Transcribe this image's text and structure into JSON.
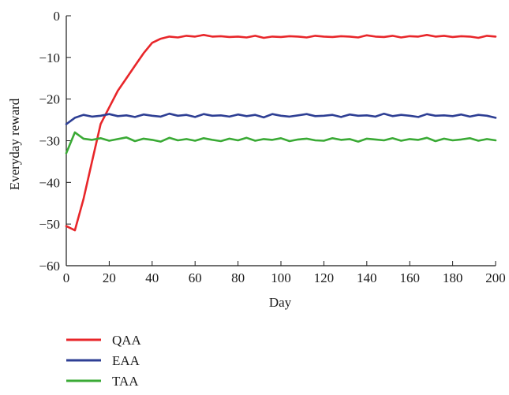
{
  "chart_data": {
    "type": "line",
    "title": "",
    "xlabel": "Day",
    "ylabel": "Everyday reward",
    "xlim": [
      0,
      200
    ],
    "ylim": [
      -60,
      0
    ],
    "xticks": [
      0,
      20,
      40,
      60,
      80,
      100,
      120,
      140,
      160,
      180,
      200
    ],
    "yticks": [
      0,
      -10,
      -20,
      -30,
      -40,
      -50,
      -60
    ],
    "xtick_labels": [
      "0",
      "20",
      "40",
      "60",
      "80",
      "100",
      "120",
      "140",
      "160",
      "180",
      "200"
    ],
    "ytick_labels": [
      "0",
      "−10",
      "−20",
      "−30",
      "−40",
      "−50",
      "−60"
    ],
    "grid": false,
    "legend_placement": "bottom-left below plot",
    "x": [
      0,
      4,
      8,
      12,
      16,
      20,
      24,
      28,
      32,
      36,
      40,
      44,
      48,
      52,
      56,
      60,
      64,
      68,
      72,
      76,
      80,
      84,
      88,
      92,
      96,
      100,
      104,
      108,
      112,
      116,
      120,
      124,
      128,
      132,
      136,
      140,
      144,
      148,
      152,
      156,
      160,
      164,
      168,
      172,
      176,
      180,
      184,
      188,
      192,
      196,
      200
    ],
    "series": [
      {
        "name": "QAA",
        "color": "#e8262a",
        "values": [
          -50.5,
          -51.5,
          -44,
          -35,
          -26,
          -22,
          -18,
          -15,
          -12,
          -9,
          -6.5,
          -5.5,
          -5,
          -5.2,
          -4.8,
          -5,
          -4.6,
          -5,
          -4.9,
          -5.1,
          -5,
          -5.2,
          -4.8,
          -5.3,
          -5,
          -5.1,
          -4.9,
          -5,
          -5.2,
          -4.8,
          -5,
          -5.1,
          -4.9,
          -5,
          -5.2,
          -4.7,
          -5,
          -5.1,
          -4.8,
          -5.2,
          -4.9,
          -5,
          -4.6,
          -5,
          -4.8,
          -5.1,
          -4.9,
          -5,
          -5.3,
          -4.8,
          -5
        ]
      },
      {
        "name": "EAA",
        "color": "#2e3f94",
        "values": [
          -26,
          -24.5,
          -23.8,
          -24.2,
          -24,
          -23.6,
          -24.1,
          -23.9,
          -24.3,
          -23.7,
          -24,
          -24.2,
          -23.5,
          -24,
          -23.8,
          -24.3,
          -23.6,
          -24,
          -23.9,
          -24.2,
          -23.7,
          -24.1,
          -23.8,
          -24.4,
          -23.6,
          -24,
          -24.2,
          -23.9,
          -23.6,
          -24.1,
          -24,
          -23.8,
          -24.3,
          -23.7,
          -24,
          -23.9,
          -24.2,
          -23.5,
          -24.1,
          -23.8,
          -24,
          -24.3,
          -23.6,
          -24,
          -23.9,
          -24.1,
          -23.7,
          -24.2,
          -23.8,
          -24,
          -24.5
        ]
      },
      {
        "name": "TAA",
        "color": "#3aaa35",
        "values": [
          -33,
          -28,
          -29.5,
          -29.8,
          -29.4,
          -30,
          -29.6,
          -29.2,
          -30.1,
          -29.5,
          -29.8,
          -30.2,
          -29.3,
          -29.9,
          -29.6,
          -30,
          -29.4,
          -29.8,
          -30.1,
          -29.5,
          -29.9,
          -29.3,
          -30,
          -29.6,
          -29.8,
          -29.4,
          -30.1,
          -29.7,
          -29.5,
          -29.9,
          -30,
          -29.4,
          -29.8,
          -29.6,
          -30.2,
          -29.5,
          -29.7,
          -29.9,
          -29.4,
          -30,
          -29.6,
          -29.8,
          -29.3,
          -30.1,
          -29.5,
          -29.9,
          -29.7,
          -29.4,
          -30,
          -29.6,
          -29.9
        ]
      }
    ]
  }
}
